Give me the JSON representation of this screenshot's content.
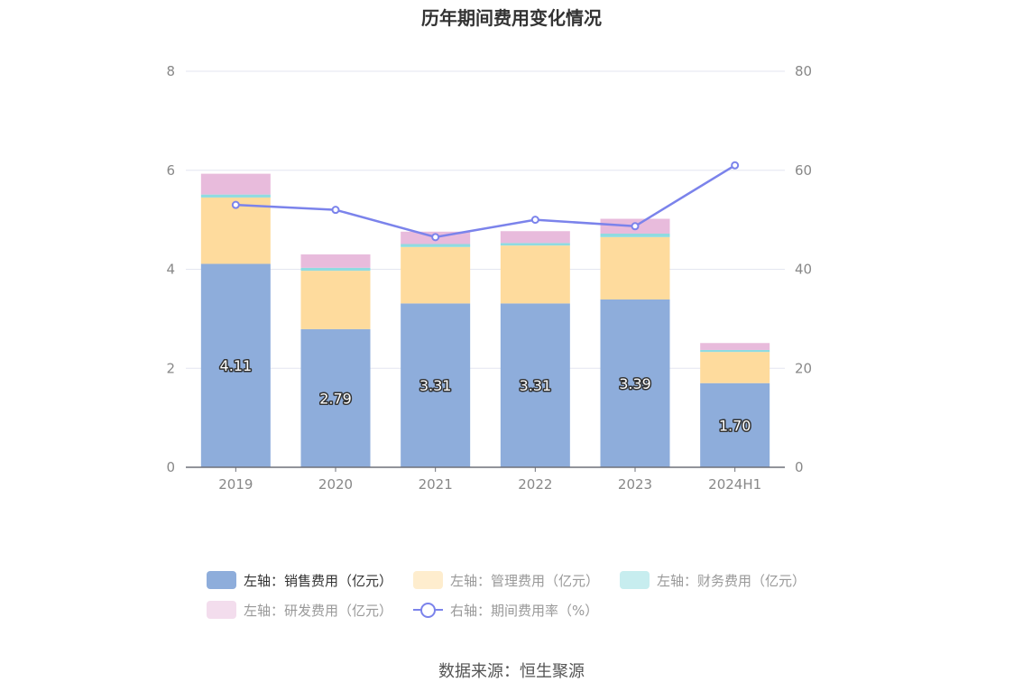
{
  "title": "历年期间费用变化情况",
  "source": "数据来源：恒生聚源",
  "chart_data": {
    "type": "bar",
    "stacked": true,
    "categories": [
      "2019",
      "2020",
      "2021",
      "2022",
      "2023",
      "2024H1"
    ],
    "left_axis": {
      "ylim": [
        0,
        8
      ],
      "ticks": [
        "0",
        "2",
        "4",
        "6",
        "8"
      ]
    },
    "right_axis": {
      "ylim": [
        0,
        80
      ],
      "ticks": [
        "0",
        "20",
        "40",
        "60",
        "80"
      ]
    },
    "grid": true,
    "legend_position": "bottom",
    "series": [
      {
        "name": "左轴：销售费用（亿元）",
        "axis": "left",
        "type": "bar",
        "color": "#8eaddb",
        "values": [
          4.11,
          2.79,
          3.31,
          3.31,
          3.39,
          1.7
        ],
        "labels": [
          "4.11",
          "2.79",
          "3.31",
          "3.31",
          "3.39",
          "1.70"
        ]
      },
      {
        "name": "左轴：管理费用（亿元）",
        "axis": "left",
        "type": "bar",
        "color": "#fedb9d",
        "values": [
          1.34,
          1.18,
          1.14,
          1.17,
          1.26,
          0.63
        ]
      },
      {
        "name": "左轴：财务费用（亿元）",
        "axis": "left",
        "type": "bar",
        "color": "#8fdbe0",
        "values": [
          0.06,
          0.06,
          0.06,
          0.05,
          0.07,
          0.04
        ]
      },
      {
        "name": "左轴：研发费用（亿元）",
        "axis": "left",
        "type": "bar",
        "color": "#e8bbdc",
        "values": [
          0.42,
          0.27,
          0.25,
          0.24,
          0.3,
          0.14
        ]
      },
      {
        "name": "右轴：期间费用率（%）",
        "axis": "right",
        "type": "line",
        "color": "#7b83eb",
        "values": [
          53.0,
          52.0,
          46.5,
          50.0,
          48.7,
          61.0
        ]
      }
    ]
  }
}
